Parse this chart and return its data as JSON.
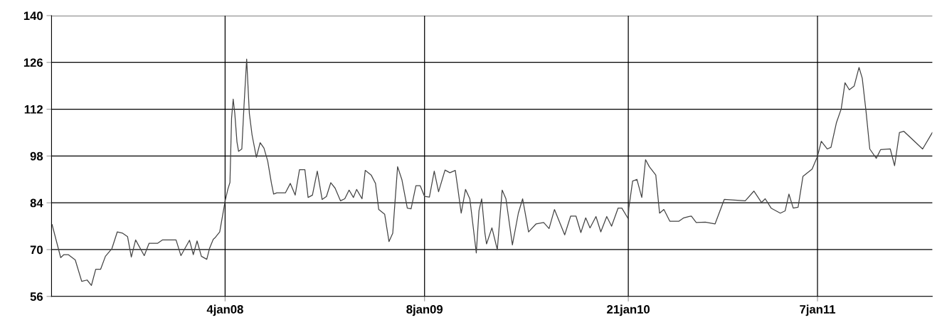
{
  "chart_data": {
    "type": "line",
    "x": [
      "2007-02-17",
      "2007-03-05",
      "2007-03-11",
      "2007-03-19",
      "2007-04-01",
      "2007-04-13",
      "2007-04-23",
      "2007-05-01",
      "2007-05-09",
      "2007-05-18",
      "2007-05-27",
      "2007-06-08",
      "2007-06-18",
      "2007-06-28",
      "2007-07-07",
      "2007-07-14",
      "2007-07-22",
      "2007-08-07",
      "2007-08-16",
      "2007-09-01",
      "2007-09-10",
      "2007-10-05",
      "2007-10-14",
      "2007-10-30",
      "2007-11-06",
      "2007-11-13",
      "2007-11-21",
      "2007-12-01",
      "2007-12-06",
      "2007-12-13",
      "2007-12-16",
      "2007-12-25",
      "2008-01-04",
      "2008-01-09",
      "2008-01-13",
      "2008-01-16",
      "2008-01-19",
      "2008-01-22",
      "2008-01-26",
      "2008-01-29",
      "2008-02-04",
      "2008-02-08",
      "2008-02-13",
      "2008-02-18",
      "2008-02-23",
      "2008-03-02",
      "2008-03-09",
      "2008-03-16",
      "2008-03-23",
      "2008-03-30",
      "2008-04-03",
      "2008-04-09",
      "2008-04-25",
      "2008-05-04",
      "2008-05-13",
      "2008-05-21",
      "2008-05-31",
      "2008-06-06",
      "2008-06-14",
      "2008-06-23",
      "2008-07-02",
      "2008-07-10",
      "2008-07-18",
      "2008-07-26",
      "2008-08-05",
      "2008-08-13",
      "2008-08-21",
      "2008-08-29",
      "2008-09-04",
      "2008-09-14",
      "2008-09-20",
      "2008-10-01",
      "2008-10-09",
      "2008-10-15",
      "2008-10-26",
      "2008-11-03",
      "2008-11-10",
      "2008-11-14",
      "2008-11-19",
      "2008-11-27",
      "2008-12-07",
      "2008-12-14",
      "2008-12-23",
      "2008-12-31",
      "2009-01-08",
      "2009-01-17",
      "2009-01-26",
      "2009-02-03",
      "2009-02-15",
      "2009-02-24",
      "2009-03-06",
      "2009-03-11",
      "2009-03-17",
      "2009-03-25",
      "2009-04-02",
      "2009-04-14",
      "2009-04-19",
      "2009-04-24",
      "2009-04-30",
      "2009-05-03",
      "2009-05-13",
      "2009-05-23",
      "2009-06-01",
      "2009-06-08",
      "2009-06-20",
      "2009-07-01",
      "2009-07-09",
      "2009-07-20",
      "2009-08-03",
      "2009-08-17",
      "2009-08-27",
      "2009-09-06",
      "2009-09-25",
      "2009-10-06",
      "2009-10-16",
      "2009-10-25",
      "2009-11-03",
      "2009-11-11",
      "2009-11-22",
      "2009-12-01",
      "2009-12-12",
      "2009-12-21",
      "2010-01-02",
      "2010-01-09",
      "2010-01-21",
      "2010-01-22",
      "2010-01-29",
      "2010-02-06",
      "2010-02-15",
      "2010-02-22",
      "2010-03-01",
      "2010-03-13",
      "2010-03-20",
      "2010-03-28",
      "2010-04-08",
      "2010-04-25",
      "2010-05-04",
      "2010-05-14",
      "2010-05-18",
      "2010-05-27",
      "2010-06-13",
      "2010-07-01",
      "2010-07-18",
      "2010-08-26",
      "2010-09-11",
      "2010-09-25",
      "2010-10-02",
      "2010-10-13",
      "2010-10-30",
      "2010-11-08",
      "2010-11-15",
      "2010-11-23",
      "2010-12-02",
      "2010-12-11",
      "2010-12-28",
      "2011-01-07",
      "2011-01-14",
      "2011-01-25",
      "2011-02-01",
      "2011-02-11",
      "2011-02-20",
      "2011-02-27",
      "2011-03-07",
      "2011-03-16",
      "2011-03-25",
      "2011-03-31",
      "2011-04-07",
      "2011-04-14",
      "2011-04-26",
      "2011-05-04",
      "2011-05-22",
      "2011-05-30",
      "2011-06-08",
      "2011-06-16",
      "2011-07-21",
      "2011-08-08"
    ],
    "series": [
      {
        "color": "#444444",
        "values": [
          77.5,
          67.6,
          68.5,
          68.5,
          66.9,
          60.5,
          60.9,
          59.3,
          64.1,
          64.1,
          68.0,
          70.3,
          75.3,
          74.9,
          73.9,
          67.8,
          72.9,
          68.2,
          71.9,
          71.9,
          72.9,
          72.9,
          68.2,
          72.8,
          68.5,
          72.6,
          68.0,
          67.1,
          70.3,
          73.1,
          73.5,
          75.3,
          84.5,
          88.0,
          90.1,
          109.3,
          115.0,
          110.7,
          102.2,
          99.4,
          100.1,
          112.8,
          127.0,
          110.7,
          104.3,
          97.6,
          102.0,
          100.4,
          96.5,
          89.8,
          86.6,
          87.0,
          87.0,
          89.8,
          86.3,
          93.9,
          93.9,
          85.6,
          86.3,
          93.5,
          85.0,
          85.9,
          90.0,
          88.4,
          84.6,
          85.2,
          87.8,
          85.6,
          88.0,
          85.2,
          93.7,
          92.3,
          89.8,
          82.0,
          80.6,
          72.4,
          74.9,
          83.8,
          94.8,
          90.9,
          82.4,
          82.2,
          89.1,
          89.1,
          85.9,
          85.7,
          93.5,
          87.3,
          93.8,
          93.0,
          93.7,
          88.0,
          80.9,
          88.0,
          85.2,
          69.0,
          81.6,
          85.2,
          74.9,
          71.7,
          76.5,
          70.0,
          87.8,
          85.2,
          71.4,
          80.9,
          85.2,
          75.3,
          77.7,
          78.1,
          76.3,
          82.0,
          74.4,
          80.0,
          80.0,
          75.1,
          79.5,
          76.5,
          79.9,
          75.3,
          79.9,
          77.0,
          82.4,
          82.4,
          79.2,
          82.4,
          90.5,
          91.0,
          85.6,
          96.9,
          94.8,
          92.3,
          80.9,
          82.0,
          78.5,
          78.5,
          79.5,
          79.9,
          80.0,
          78.1,
          78.2,
          77.7,
          85.0,
          84.6,
          87.5,
          84.1,
          85.2,
          82.4,
          80.9,
          81.6,
          86.6,
          82.4,
          82.7,
          91.9,
          94.1,
          97.9,
          102.4,
          100.1,
          100.6,
          107.9,
          112.1,
          119.9,
          117.8,
          118.9,
          124.5,
          121.3,
          111.4,
          100.1,
          97.3,
          99.9,
          100.1,
          95.1,
          105.0,
          105.4,
          100.1,
          105.0
        ]
      }
    ],
    "xlim": [
      "2007-02-16",
      "2011-08-08"
    ],
    "xticks": [
      {
        "value": "2008-01-04",
        "label": "4jan08"
      },
      {
        "value": "2009-01-08",
        "label": "8jan09"
      },
      {
        "value": "2010-01-21",
        "label": "21jan10"
      },
      {
        "value": "2011-01-07",
        "label": "7jan11"
      }
    ],
    "ylim": [
      56,
      140
    ],
    "yticks": [
      56,
      70,
      84,
      98,
      112,
      126,
      140
    ],
    "grid": true,
    "line_style": "solid"
  }
}
